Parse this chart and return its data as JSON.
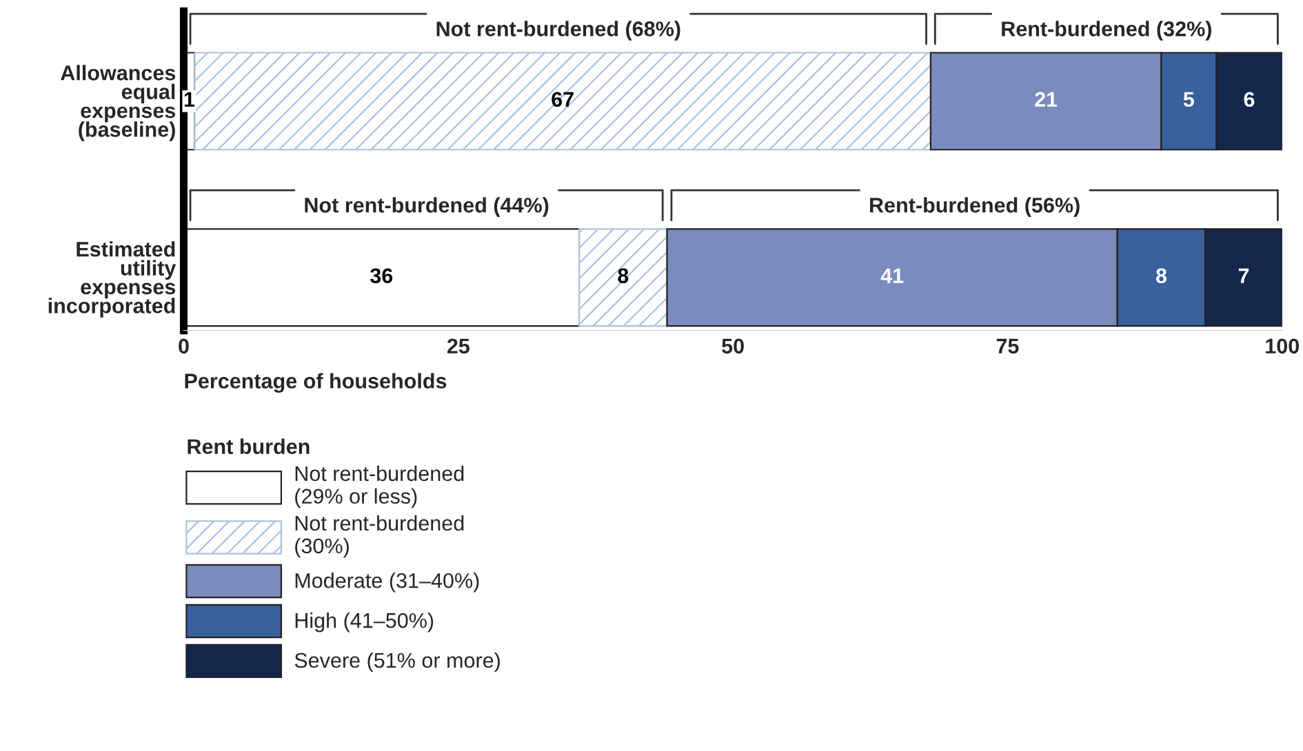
{
  "chart_data": {
    "type": "bar",
    "orientation": "horizontal",
    "stacked": true,
    "categories": [
      "Allowances\nequal\nexpenses\n(baseline)",
      "Estimated\nutility\nexpenses\nincorporated"
    ],
    "series": [
      {
        "name": "Not rent-burdened\n(29% or less)",
        "color": "#ffffff",
        "values": [
          1,
          36
        ]
      },
      {
        "name": "Not rent-burdened\n(30%)",
        "color": "#a9c2dd",
        "values": [
          67,
          8
        ]
      },
      {
        "name": "Moderate (31–40%)",
        "color": "#7a8bbd",
        "values": [
          21,
          41
        ]
      },
      {
        "name": "High (41–50%)",
        "color": "#3a5f9e",
        "values": [
          5,
          8
        ]
      },
      {
        "name": "Severe (51% or more)",
        "color": "#15264d",
        "values": [
          6,
          7
        ]
      }
    ],
    "xlim": [
      0,
      100
    ],
    "xticks": [
      0,
      25,
      50,
      75,
      100
    ],
    "xlabel": "Percentage of households",
    "legend_title": "Rent burden",
    "legend": "bottom",
    "data_labels": true,
    "grid": false,
    "annotations": [
      "Not rent-burdened (68%)",
      "Rent-burdened (32%)",
      "Not rent-burdened (44%)",
      "Rent-burdened (56%)"
    ]
  }
}
